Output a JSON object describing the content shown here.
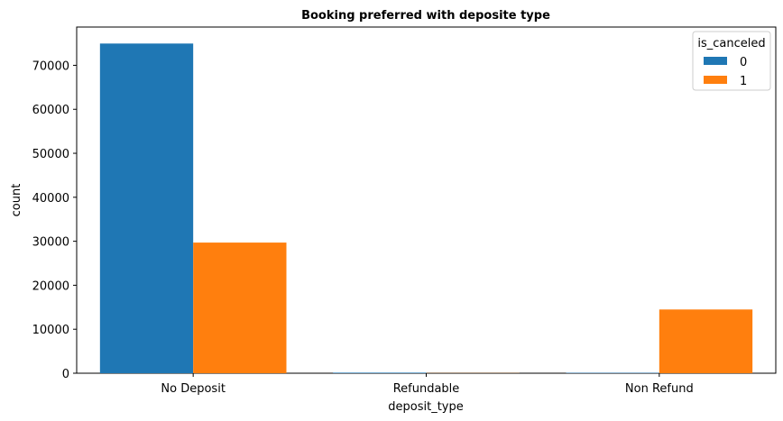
{
  "chart_data": {
    "type": "bar",
    "title": "Booking preferred with deposite type",
    "xlabel": "deposit_type",
    "ylabel": "count",
    "categories": [
      "No Deposit",
      "Refundable",
      "Non Refund"
    ],
    "series": [
      {
        "name": "0",
        "values": [
          74950,
          126,
          93
        ],
        "color": "#1f77b4"
      },
      {
        "name": "1",
        "values": [
          29700,
          36,
          14490
        ],
        "color": "#ff7f0e"
      }
    ],
    "ylim": [
      0,
      78700
    ],
    "yticks": [
      0,
      10000,
      20000,
      30000,
      40000,
      50000,
      60000,
      70000
    ],
    "ytick_labels": [
      "0",
      "10000",
      "20000",
      "30000",
      "40000",
      "50000",
      "60000",
      "70000"
    ],
    "legend": {
      "title": "is_canceled",
      "position": "top-right"
    },
    "grid": false
  }
}
